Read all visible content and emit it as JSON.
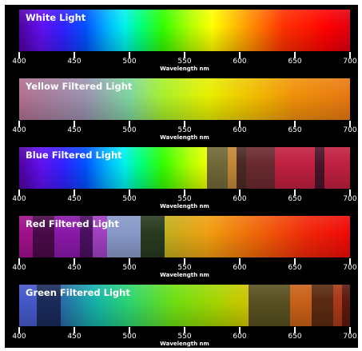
{
  "axis": {
    "label": "Wavelength  nm",
    "min": 400,
    "max": 700,
    "ticks": [
      400,
      450,
      500,
      550,
      600,
      650,
      700
    ]
  },
  "panels": [
    {
      "id": "white",
      "title": "White Light",
      "type": "spectrum"
    },
    {
      "id": "yellow",
      "title": "Yellow Filtered Light",
      "type": "gradient",
      "stops": [
        {
          "wl": 400,
          "color": "#b07090"
        },
        {
          "wl": 460,
          "color": "#9a92b0"
        },
        {
          "wl": 500,
          "color": "#7ed6a0"
        },
        {
          "wl": 530,
          "color": "#a6f02c"
        },
        {
          "wl": 570,
          "color": "#e6f000"
        },
        {
          "wl": 610,
          "color": "#f0c000"
        },
        {
          "wl": 650,
          "color": "#f09008"
        },
        {
          "wl": 700,
          "color": "#e87814"
        }
      ]
    },
    {
      "id": "blue",
      "title": "Blue Filtered Light",
      "type": "spectrum_partial",
      "spectrum_end": 570,
      "segments": [
        {
          "from": 570,
          "to": 589,
          "color": "#706838"
        },
        {
          "from": 589,
          "to": 597,
          "color": "#c08838"
        },
        {
          "from": 597,
          "to": 606,
          "color": "#4a2a22"
        },
        {
          "from": 606,
          "to": 632,
          "color": "#6a2a30"
        },
        {
          "from": 632,
          "to": 668,
          "color": "#c02040"
        },
        {
          "from": 668,
          "to": 677,
          "color": "#4a1428"
        },
        {
          "from": 677,
          "to": 700,
          "color": "#c02040"
        }
      ]
    },
    {
      "id": "red",
      "title": "Red Filtered Light",
      "type": "gradient_with_segments",
      "stops": [
        {
          "wl": 532,
          "color": "#c0b020"
        },
        {
          "wl": 570,
          "color": "#f0a010"
        },
        {
          "wl": 620,
          "color": "#f06008"
        },
        {
          "wl": 660,
          "color": "#f02808"
        },
        {
          "wl": 700,
          "color": "#f00808"
        }
      ],
      "segments": [
        {
          "from": 400,
          "to": 412,
          "color": "#a0108a"
        },
        {
          "from": 412,
          "to": 432,
          "color": "#4a0a48"
        },
        {
          "from": 432,
          "to": 455,
          "color": "#8a18a8"
        },
        {
          "from": 455,
          "to": 467,
          "color": "#4a1060"
        },
        {
          "from": 467,
          "to": 480,
          "color": "#a040c0"
        },
        {
          "from": 480,
          "to": 510,
          "color": "#8898c8"
        },
        {
          "from": 510,
          "to": 532,
          "color": "#283a20"
        }
      ]
    },
    {
      "id": "green",
      "title": "Green Filtered Light",
      "type": "gradient_with_segments",
      "stops": [
        {
          "wl": 438,
          "color": "#2868a8"
        },
        {
          "wl": 470,
          "color": "#14b4a8"
        },
        {
          "wl": 500,
          "color": "#2cd470"
        },
        {
          "wl": 540,
          "color": "#6ce010"
        },
        {
          "wl": 580,
          "color": "#a8d400"
        },
        {
          "wl": 608,
          "color": "#d0c400"
        }
      ],
      "segments": [
        {
          "from": 400,
          "to": 416,
          "color": "#4458c8"
        },
        {
          "from": 416,
          "to": 438,
          "color": "#1a2a5a"
        },
        {
          "from": 608,
          "to": 646,
          "color": "#585020"
        },
        {
          "from": 646,
          "to": 665,
          "color": "#c86018"
        },
        {
          "from": 665,
          "to": 685,
          "color": "#5a2a10"
        },
        {
          "from": 685,
          "to": 693,
          "color": "#a83818"
        },
        {
          "from": 693,
          "to": 700,
          "color": "#5a1810"
        }
      ]
    }
  ],
  "spectrum_colors": [
    {
      "wl": 400,
      "color": "#5000a0"
    },
    {
      "wl": 420,
      "color": "#6010f0"
    },
    {
      "wl": 440,
      "color": "#3020ff"
    },
    {
      "wl": 460,
      "color": "#0050ff"
    },
    {
      "wl": 480,
      "color": "#00b4ff"
    },
    {
      "wl": 495,
      "color": "#00f0f0"
    },
    {
      "wl": 510,
      "color": "#00ff80"
    },
    {
      "wl": 530,
      "color": "#30ff00"
    },
    {
      "wl": 555,
      "color": "#b0ff00"
    },
    {
      "wl": 575,
      "color": "#ffff00"
    },
    {
      "wl": 595,
      "color": "#ffc000"
    },
    {
      "wl": 615,
      "color": "#ff8000"
    },
    {
      "wl": 640,
      "color": "#ff3000"
    },
    {
      "wl": 680,
      "color": "#ff0000"
    },
    {
      "wl": 700,
      "color": "#e00010"
    }
  ]
}
